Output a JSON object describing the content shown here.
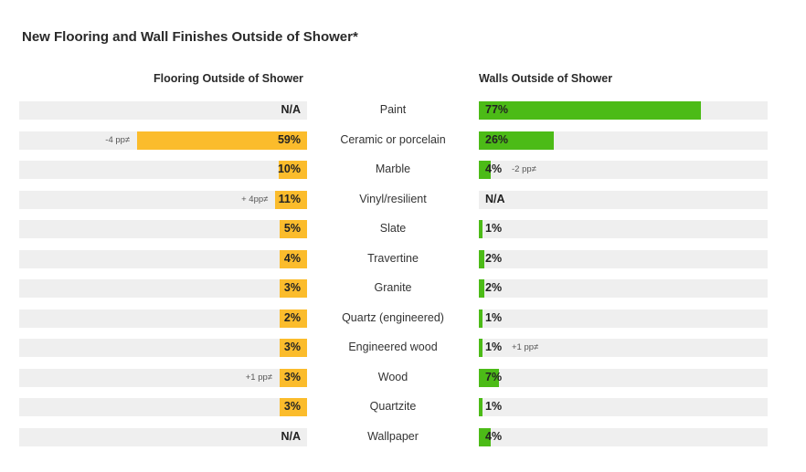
{
  "chart_data": {
    "type": "bar",
    "title": "New Flooring and Wall Finishes Outside of Shower*",
    "categories": [
      "Paint",
      "Ceramic or porcelain",
      "Marble",
      "Vinyl/resilient",
      "Slate",
      "Travertine",
      "Granite",
      "Quartz (engineered)",
      "Engineered wood",
      "Wood",
      "Quartzite",
      "Wallpaper"
    ],
    "series": [
      {
        "name": "Flooring Outside of Shower",
        "color": "#fbbc2c",
        "values": [
          null,
          59,
          10,
          11,
          5,
          4,
          3,
          2,
          3,
          3,
          3,
          null
        ],
        "labels": [
          "N/A",
          "59%",
          "10%",
          "11%",
          "5%",
          "4%",
          "3%",
          "2%",
          "3%",
          "3%",
          "3%",
          "N/A"
        ],
        "notes": [
          null,
          "-4 pp≠",
          null,
          "+ 4pp≠",
          null,
          null,
          null,
          null,
          null,
          "+1 pp≠",
          null,
          null
        ]
      },
      {
        "name": "Walls Outside of Shower",
        "color": "#4cbb17",
        "values": [
          77,
          26,
          4,
          null,
          1,
          2,
          2,
          1,
          1,
          7,
          1,
          4
        ],
        "labels": [
          "77%",
          "26%",
          "4%",
          "N/A",
          "1%",
          "2%",
          "2%",
          "1%",
          "1%",
          "7%",
          "1%",
          "4%"
        ],
        "notes": [
          null,
          null,
          "-2 pp≠",
          null,
          null,
          null,
          null,
          null,
          "+1 pp≠",
          null,
          null,
          null
        ]
      }
    ],
    "xlim": [
      0,
      100
    ],
    "grid": false,
    "legend": "none"
  }
}
